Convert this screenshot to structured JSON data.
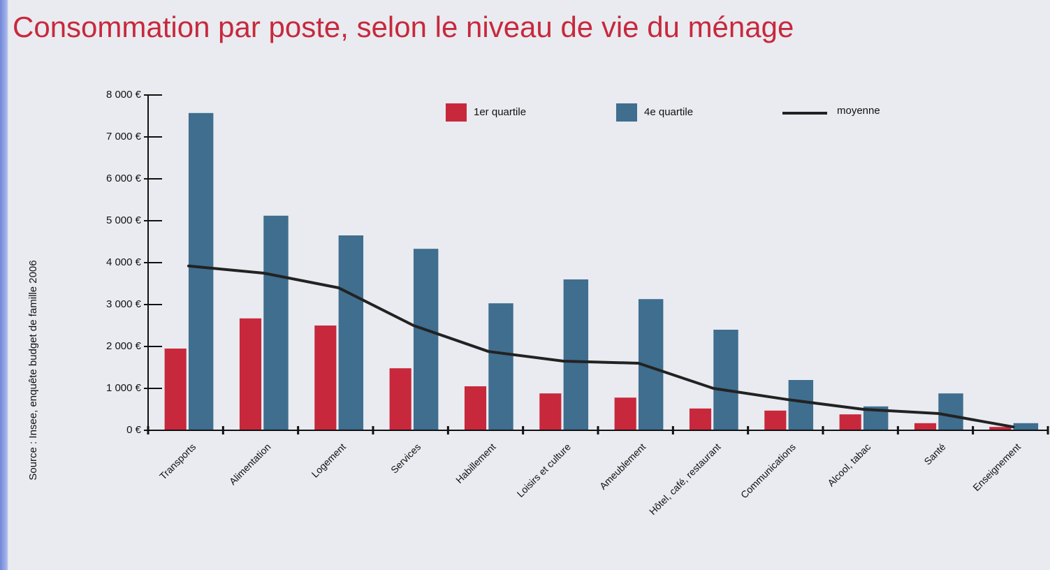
{
  "chart_data": {
    "type": "bar",
    "title": "Consommation par poste, selon le niveau de vie du ménage",
    "side_note": "Source : Insee, enquête budget de famille 2006",
    "categories": [
      "Transports",
      "Alimentation",
      "Logement",
      "Services",
      "Habillement",
      "Loisirs et culture",
      "Ameublement",
      "Hôtel, café, restaurant",
      "Communications",
      "Alcool, tabac",
      "Santé",
      "Enseignement"
    ],
    "series": [
      {
        "name": "1er quartile",
        "color": "#c8283c",
        "values": [
          1950,
          2670,
          2500,
          1480,
          1050,
          880,
          780,
          520,
          470,
          380,
          170,
          80
        ]
      },
      {
        "name": "4e quartile",
        "color": "#3f6e8f",
        "values": [
          7570,
          5120,
          4650,
          4330,
          3030,
          3600,
          3130,
          2400,
          1200,
          570,
          880,
          170
        ]
      },
      {
        "name": "moyenne",
        "type": "line",
        "color": "#222222",
        "values": [
          3920,
          3750,
          3400,
          2500,
          1880,
          1650,
          1600,
          1000,
          730,
          500,
          400,
          80
        ]
      }
    ],
    "ylim": [
      0,
      8000
    ],
    "yticks": [
      {
        "value": 0,
        "label": "0 €"
      },
      {
        "value": 1000,
        "label": "1 000 €"
      },
      {
        "value": 2000,
        "label": "2 000 €"
      },
      {
        "value": 3000,
        "label": "3 000 €"
      },
      {
        "value": 4000,
        "label": "4 000 €"
      },
      {
        "value": 5000,
        "label": "5 000 €"
      },
      {
        "value": 6000,
        "label": "6 000 €"
      },
      {
        "value": 7000,
        "label": "7 000 €"
      },
      {
        "value": 8000,
        "label": "8 000 €"
      }
    ],
    "legend": "top"
  }
}
